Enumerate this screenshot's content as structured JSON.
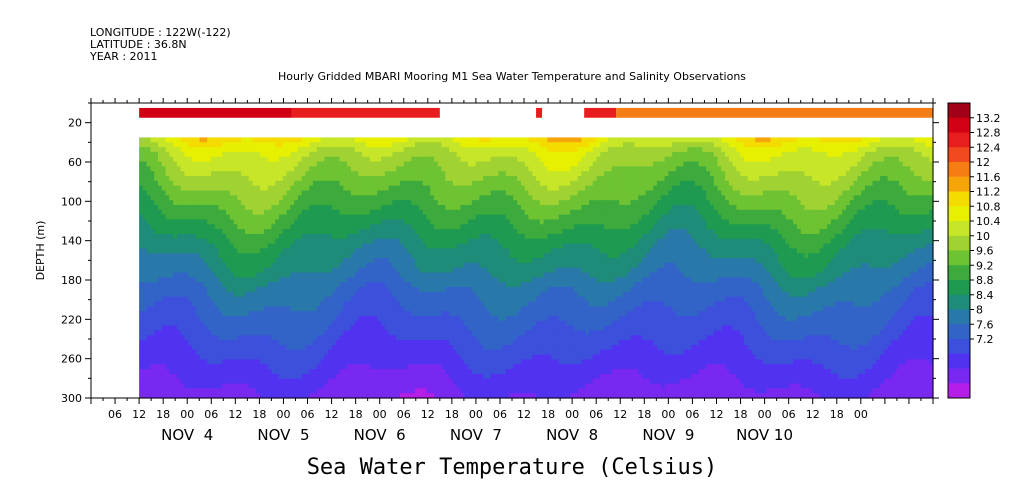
{
  "header": {
    "longitude": "LONGITUDE : 122W(-122)",
    "latitude": "LATITUDE : 36.8N",
    "year": "YEAR : 2011"
  },
  "chart_data": {
    "type": "heatmap",
    "title": "Hourly Gridded MBARI Mooring M1 Sea Water Temperature and Salinity Observations",
    "xlabel": "Sea Water Temperature (Celsius)",
    "ylabel": "DEPTH (m)",
    "ylim": [
      300,
      0
    ],
    "y_ticks": [
      20,
      60,
      100,
      140,
      180,
      220,
      260,
      300
    ],
    "x_hour_ticks": [
      "06",
      "12",
      "18",
      "00",
      "06",
      "12",
      "18",
      "00",
      "06",
      "12",
      "18",
      "00",
      "06",
      "12",
      "18",
      "00",
      "06",
      "12",
      "18",
      "00",
      "06",
      "12",
      "18",
      "00",
      "06",
      "12",
      "18",
      "00",
      "06",
      "12",
      "18",
      "00"
    ],
    "x_day_labels": [
      "NOV  4",
      "NOV  5",
      "NOV  6",
      "NOV  7",
      "NOV  8",
      "NOV  9",
      "NOV 10"
    ],
    "x_range_hours": [
      -24,
      186
    ],
    "data_start_hour": -12,
    "colorbar_labels": [
      "13.2",
      "12.8",
      "12.4",
      "12",
      "11.6",
      "11.2",
      "10.8",
      "10.4",
      "10",
      "9.6",
      "9.2",
      "8.8",
      "8.4",
      "8",
      "7.6",
      "7.2"
    ],
    "colorbar_colors": [
      "#a00018",
      "#d20014",
      "#e81e1e",
      "#f04a1e",
      "#f57d14",
      "#f5a50a",
      "#f5dc00",
      "#e6f000",
      "#c8e628",
      "#a0d232",
      "#6ec332",
      "#3caa3c",
      "#1e9b50",
      "#1e8c78",
      "#2878aa",
      "#3264c8",
      "#3c50dc",
      "#5032f0",
      "#7828f0",
      "#b41ee6"
    ],
    "surface_band": {
      "depth_range": [
        5,
        15
      ],
      "segments": [
        {
          "start_hour": -12,
          "end_hour": 26,
          "value": 13.0
        },
        {
          "start_hour": 26,
          "end_hour": 63,
          "value": 12.6
        },
        {
          "start_hour": 87,
          "end_hour": 88.5,
          "value": 12.6
        },
        {
          "start_hour": 99,
          "end_hour": 107,
          "value": 12.6
        },
        {
          "start_hour": 107,
          "end_hour": 186,
          "value": 12.1
        }
      ]
    },
    "profile_depths": [
      35,
      50,
      70,
      90,
      110,
      130,
      150,
      170,
      190,
      210,
      230,
      250,
      270,
      290,
      300
    ],
    "profile_mean_temps": [
      11.1,
      10.6,
      10.3,
      10.0,
      9.7,
      9.4,
      9.1,
      8.9,
      8.6,
      8.4,
      8.2,
      8.0,
      7.8,
      7.6,
      7.5
    ]
  }
}
